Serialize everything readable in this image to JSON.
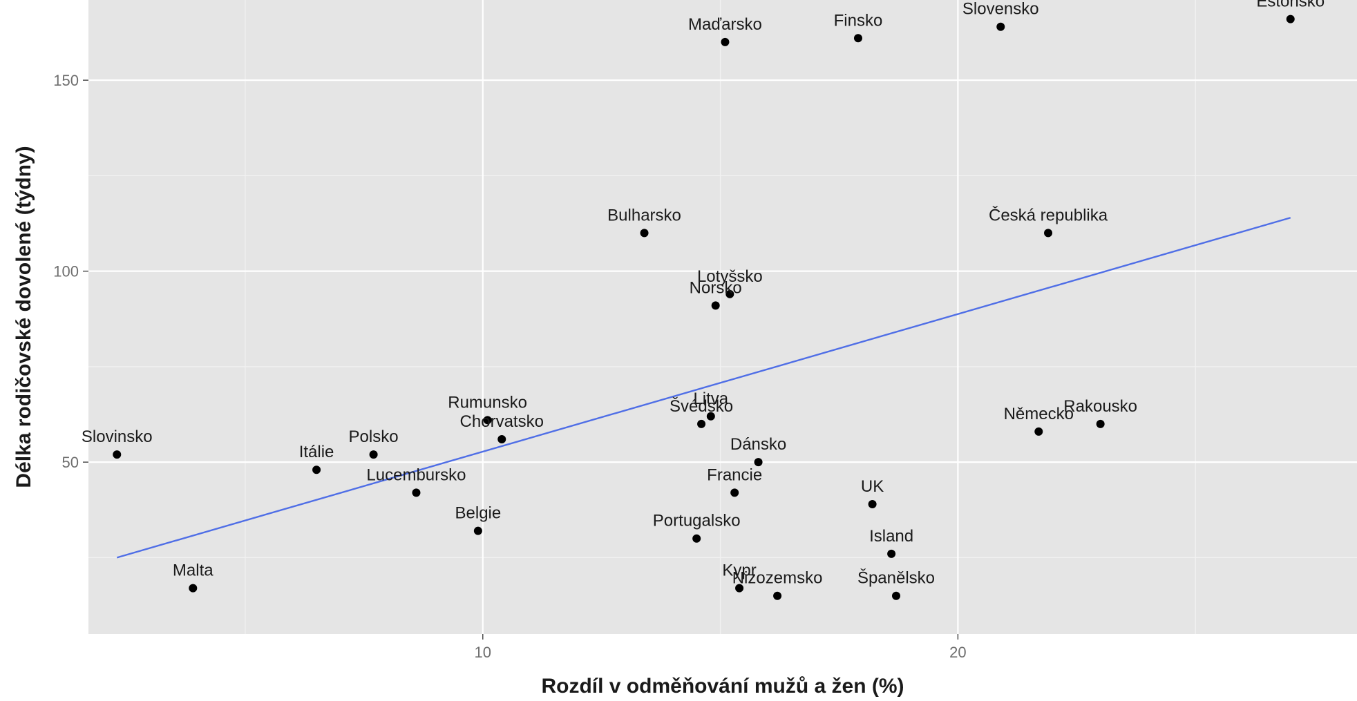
{
  "chart_data": {
    "type": "scatter",
    "xlabel": "Rozdíl v odměňování mužů a žen (%)",
    "ylabel": "Délka rodičovské dovolené (týdny)",
    "xlim": [
      1.7,
      28.4
    ],
    "ylim": [
      5,
      171
    ],
    "x_ticks": [
      10,
      20
    ],
    "x_tick_labels": [
      "10",
      "20"
    ],
    "y_ticks": [
      50,
      100,
      150
    ],
    "y_tick_labels": [
      "50",
      "100",
      "150"
    ],
    "x_minor": [
      5,
      15,
      25
    ],
    "y_minor": [
      25,
      75,
      125
    ],
    "grid": true,
    "legend": "none",
    "points": [
      {
        "label": "Estonsko",
        "x": 27.0,
        "y": 166
      },
      {
        "label": "Slovensko",
        "x": 20.9,
        "y": 164
      },
      {
        "label": "Finsko",
        "x": 17.9,
        "y": 161
      },
      {
        "label": "Maďarsko",
        "x": 15.1,
        "y": 160
      },
      {
        "label": "Bulharsko",
        "x": 13.4,
        "y": 110
      },
      {
        "label": "Česká republika",
        "x": 21.9,
        "y": 110
      },
      {
        "label": "Lotyšsko",
        "x": 15.2,
        "y": 94
      },
      {
        "label": "Norsko",
        "x": 14.9,
        "y": 91
      },
      {
        "label": "Litva",
        "x": 14.8,
        "y": 62
      },
      {
        "label": "Švédsko",
        "x": 14.6,
        "y": 60
      },
      {
        "label": "Rumunsko",
        "x": 10.1,
        "y": 61
      },
      {
        "label": "Chorvatsko",
        "x": 10.4,
        "y": 56
      },
      {
        "label": "Rakousko",
        "x": 23.0,
        "y": 60
      },
      {
        "label": "Německo",
        "x": 21.7,
        "y": 58
      },
      {
        "label": "Slovinsko",
        "x": 2.3,
        "y": 52
      },
      {
        "label": "Polsko",
        "x": 7.7,
        "y": 52
      },
      {
        "label": "Itálie",
        "x": 6.5,
        "y": 48
      },
      {
        "label": "Dánsko",
        "x": 15.8,
        "y": 50
      },
      {
        "label": "Lucembursko",
        "x": 8.6,
        "y": 42
      },
      {
        "label": "Francie",
        "x": 15.3,
        "y": 42
      },
      {
        "label": "UK",
        "x": 18.2,
        "y": 39
      },
      {
        "label": "Belgie",
        "x": 9.9,
        "y": 32
      },
      {
        "label": "Portugalsko",
        "x": 14.5,
        "y": 30
      },
      {
        "label": "Island",
        "x": 18.6,
        "y": 26
      },
      {
        "label": "Malta",
        "x": 3.9,
        "y": 17
      },
      {
        "label": "Kypr",
        "x": 15.4,
        "y": 17
      },
      {
        "label": "Nizozemsko",
        "x": 16.2,
        "y": 15
      },
      {
        "label": "Španělsko",
        "x": 18.7,
        "y": 15
      }
    ],
    "trend_line": {
      "x": [
        2.3,
        27.0
      ],
      "y": [
        25,
        114
      ]
    }
  }
}
